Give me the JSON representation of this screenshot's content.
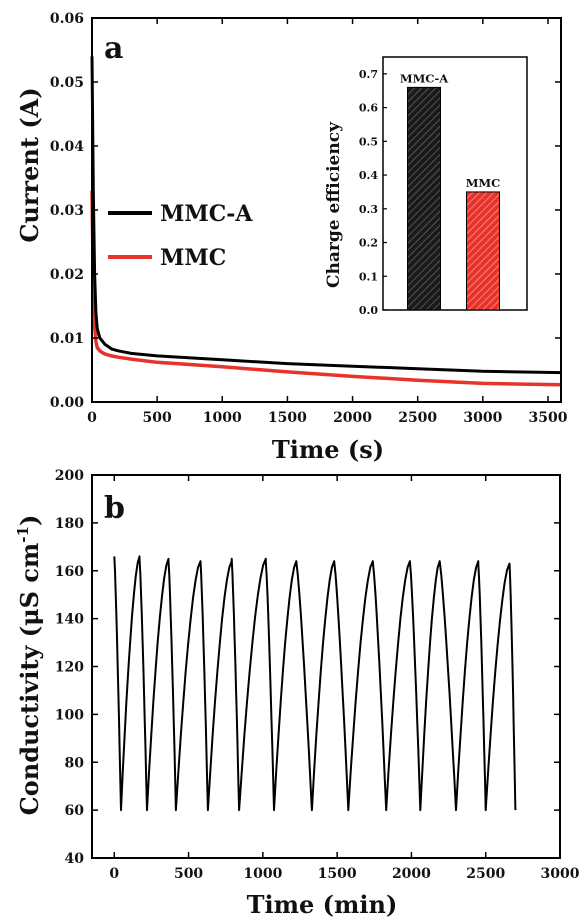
{
  "chart_data": [
    {
      "panel": "a",
      "type": "line",
      "xlabel": "Time (s)",
      "ylabel": "Current (A)",
      "xlim": [
        0,
        3600
      ],
      "ylim": [
        0,
        0.06
      ],
      "xticks": [
        "0",
        "500",
        "1000",
        "1500",
        "2000",
        "2500",
        "3000",
        "3500"
      ],
      "yticks": [
        "0.00",
        "0.01",
        "0.02",
        "0.03",
        "0.04",
        "0.05",
        "0.06"
      ],
      "legend_position": "left",
      "series": [
        {
          "name": "MMC-A",
          "color": "#000000",
          "x": [
            0,
            10,
            20,
            30,
            40,
            60,
            80,
            100,
            150,
            200,
            300,
            500,
            1000,
            1500,
            2000,
            2500,
            3000,
            3600
          ],
          "y": [
            0.054,
            0.033,
            0.02,
            0.014,
            0.0115,
            0.01,
            0.0095,
            0.009,
            0.0083,
            0.008,
            0.0076,
            0.0072,
            0.0066,
            0.006,
            0.0056,
            0.0052,
            0.0048,
            0.0046
          ]
        },
        {
          "name": "MMC",
          "color": "#e8332b",
          "x": [
            0,
            10,
            20,
            30,
            40,
            60,
            80,
            100,
            150,
            200,
            300,
            500,
            1000,
            1500,
            2000,
            2500,
            3000,
            3600
          ],
          "y": [
            0.033,
            0.018,
            0.012,
            0.0095,
            0.0085,
            0.008,
            0.0077,
            0.0075,
            0.0072,
            0.007,
            0.0067,
            0.0062,
            0.0055,
            0.0047,
            0.004,
            0.0034,
            0.0029,
            0.0027
          ]
        }
      ],
      "inset": {
        "type": "bar",
        "ylabel": "Charge efficiency",
        "ylim": [
          0,
          0.75
        ],
        "yticks": [
          "0.0",
          "0.1",
          "0.2",
          "0.3",
          "0.4",
          "0.5",
          "0.6",
          "0.7"
        ],
        "categories": [
          "MMC-A",
          "MMC"
        ],
        "values": [
          0.66,
          0.35
        ],
        "colors": [
          "#1a1a1a",
          "#e8332b"
        ]
      }
    },
    {
      "panel": "b",
      "type": "line",
      "xlabel": "Time (min)",
      "ylabel": "Conductivity (μS cm",
      "ylabel_superscript": "-1",
      "ylabel_close": ")",
      "xlim": [
        -150,
        3000
      ],
      "ylim": [
        40,
        200
      ],
      "xticks": [
        "0",
        "500",
        "1000",
        "1500",
        "2000",
        "2500",
        "3000"
      ],
      "yticks": [
        "40",
        "60",
        "80",
        "100",
        "120",
        "140",
        "160",
        "180",
        "200"
      ],
      "series": [
        {
          "name": "",
          "color": "#000000",
          "cycles": [
            {
              "start": 0,
              "min": 45,
              "end": 170,
              "peak": 166
            },
            {
              "start": 170,
              "min": 220,
              "end": 365,
              "peak": 165
            },
            {
              "start": 365,
              "min": 415,
              "end": 580,
              "peak": 164
            },
            {
              "start": 580,
              "min": 630,
              "end": 790,
              "peak": 164
            },
            {
              "start": 790,
              "min": 840,
              "end": 1020,
              "peak": 165
            },
            {
              "start": 1020,
              "min": 1075,
              "end": 1225,
              "peak": 164
            },
            {
              "start": 1225,
              "min": 1330,
              "end": 1480,
              "peak": 164
            },
            {
              "start": 1480,
              "min": 1575,
              "end": 1740,
              "peak": 164
            },
            {
              "start": 1740,
              "min": 1830,
              "end": 1990,
              "peak": 164
            },
            {
              "start": 1990,
              "min": 2060,
              "end": 2190,
              "peak": 164
            },
            {
              "start": 2190,
              "min": 2300,
              "end": 2450,
              "peak": 164
            },
            {
              "start": 2450,
              "min": 2500,
              "end": 2660,
              "peak": 163
            },
            {
              "start": 2660,
              "min": 2700,
              "end": 2700,
              "peak": 163
            }
          ],
          "min_value": 60
        }
      ]
    }
  ]
}
